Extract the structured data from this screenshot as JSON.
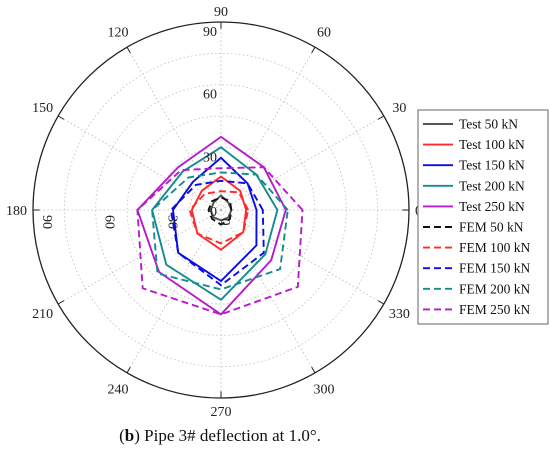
{
  "caption": {
    "bold_part": "b",
    "text": "Pipe 3# deflection at 1.0°.",
    "open_paren": "(",
    "close_paren": ")"
  },
  "chart_data": {
    "type": "polar-line",
    "title": "",
    "angle_ticks": [
      0,
      30,
      60,
      90,
      120,
      150,
      180,
      210,
      240,
      270,
      300,
      330
    ],
    "angle_tick_labels": [
      "0",
      "30",
      "60",
      "90",
      "120",
      "150",
      "180",
      "210",
      "240",
      "270",
      "300",
      "330"
    ],
    "radial_ticks_up": [
      "0",
      "30",
      "60",
      "90"
    ],
    "radial_ticks_left": [
      "90",
      "60",
      "30",
      "0"
    ],
    "r_range": [
      0,
      90
    ],
    "grid": true,
    "legend_position": "right",
    "categories_deg": [
      0,
      45,
      90,
      135,
      180,
      225,
      270,
      315
    ],
    "series": [
      {
        "name": "Test 50 kN",
        "style": "solid",
        "color": "#555555",
        "values": [
          5,
          5,
          7,
          5,
          5,
          5,
          5,
          5
        ]
      },
      {
        "name": "Test 100 kN",
        "style": "solid",
        "color": "#ff2a2a",
        "values": [
          12,
          13,
          16,
          13,
          14,
          16,
          19,
          15
        ]
      },
      {
        "name": "Test 150 kN",
        "style": "solid",
        "color": "#0a0ae6",
        "values": [
          17,
          18,
          25,
          19,
          23,
          29,
          34,
          24
        ]
      },
      {
        "name": "Test 200 kN",
        "style": "solid",
        "color": "#138c8c",
        "values": [
          27,
          24,
          30,
          26,
          33,
          37,
          43,
          30
        ]
      },
      {
        "name": "Test 250 kN",
        "style": "solid",
        "color": "#b51bc9",
        "values": [
          31,
          29,
          35,
          29,
          40,
          42,
          50,
          34
        ]
      },
      {
        "name": "FEM 50 kN",
        "style": "dashed",
        "color": "#111111",
        "values": [
          5,
          6,
          6,
          6,
          6,
          6,
          7,
          6
        ]
      },
      {
        "name": "FEM 100 kN",
        "style": "dashed",
        "color": "#ff2a2a",
        "values": [
          13,
          12,
          9,
          11,
          15,
          16,
          16,
          15
        ]
      },
      {
        "name": "FEM 150 kN",
        "style": "dashed",
        "color": "#0a0ae6",
        "values": [
          20,
          18,
          14,
          17,
          24,
          29,
          36,
          29
        ]
      },
      {
        "name": "FEM 200 kN",
        "style": "dashed",
        "color": "#138c8c",
        "values": [
          32,
          24,
          18,
          22,
          33,
          43,
          38,
          40
        ]
      },
      {
        "name": "FEM 250 kN",
        "style": "dashed",
        "color": "#b51bc9",
        "values": [
          39,
          29,
          20,
          27,
          40,
          53,
          50,
          52
        ]
      }
    ]
  }
}
